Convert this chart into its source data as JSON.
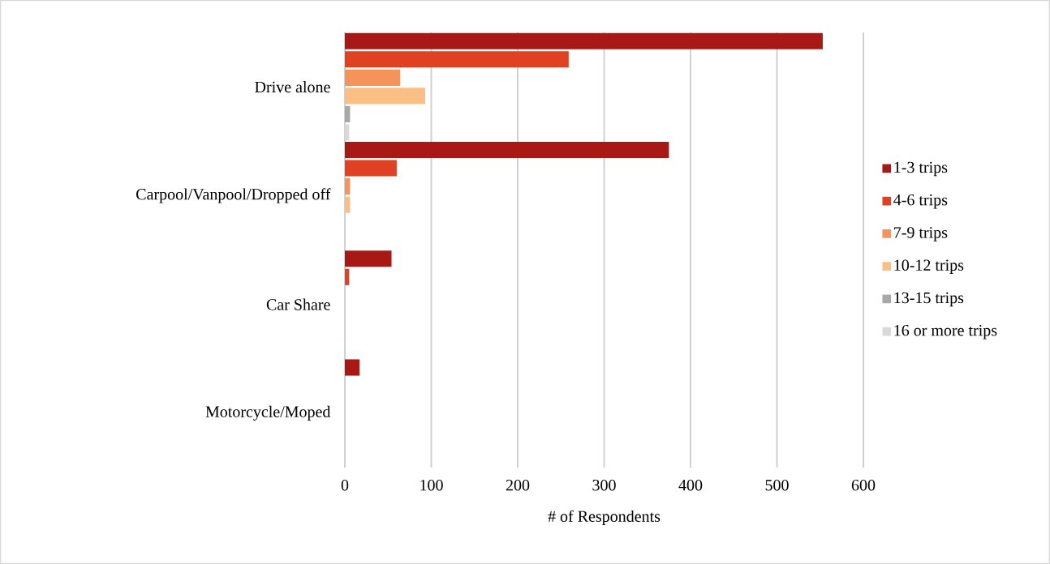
{
  "chart_data": {
    "type": "bar",
    "orientation": "horizontal",
    "categories": [
      "Drive alone",
      "Carpool/Vanpool/Dropped off",
      "Car Share",
      "Motorcycle/Moped"
    ],
    "series": [
      {
        "name": "1-3 trips",
        "color": "#a81915",
        "values": [
          553,
          375,
          54,
          17
        ]
      },
      {
        "name": "4-6 trips",
        "color": "#e04122",
        "values": [
          259,
          60,
          5,
          0
        ]
      },
      {
        "name": "7-9 trips",
        "color": "#f4935a",
        "values": [
          64,
          6,
          0,
          0
        ]
      },
      {
        "name": "10-12 trips",
        "color": "#fbbf86",
        "values": [
          93,
          6,
          0,
          0
        ]
      },
      {
        "name": "13-15 trips",
        "color": "#aaa7a7",
        "values": [
          6,
          0,
          0,
          0
        ]
      },
      {
        "name": "16 or more trips",
        "color": "#d9d9d9",
        "values": [
          5,
          0,
          0,
          0
        ]
      }
    ],
    "xlabel": "# of Respondents",
    "xlim": [
      0,
      600
    ],
    "xticks": [
      0,
      100,
      200,
      300,
      400,
      500,
      600
    ],
    "grid": "x",
    "legend": "right"
  }
}
